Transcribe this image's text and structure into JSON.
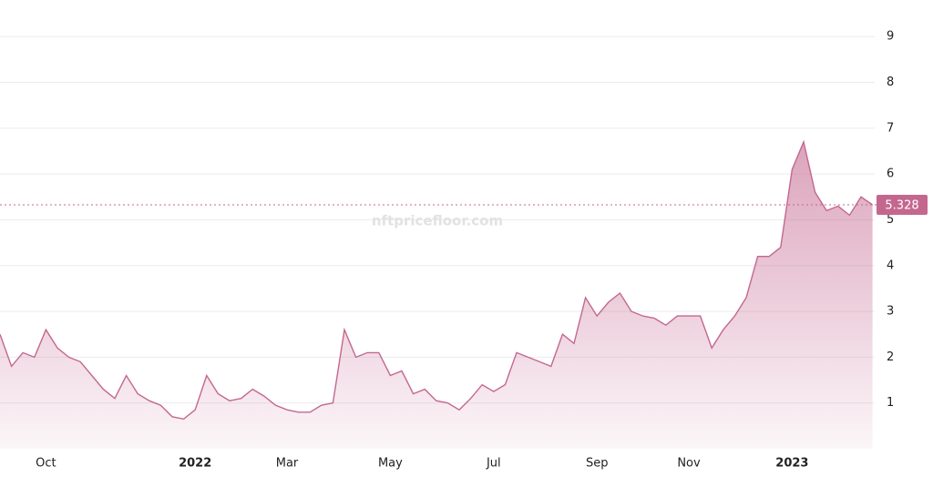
{
  "chart_data": {
    "type": "area",
    "watermark": "nftpricefloor.com",
    "categories": [
      null,
      null,
      null,
      null,
      "Oct",
      null,
      null,
      null,
      null,
      null,
      null,
      null,
      null,
      null,
      null,
      null,
      null,
      "2022",
      null,
      null,
      null,
      null,
      null,
      null,
      null,
      "Mar",
      null,
      null,
      null,
      null,
      null,
      null,
      null,
      null,
      "May",
      null,
      null,
      null,
      null,
      null,
      null,
      null,
      null,
      "Jul",
      null,
      null,
      null,
      null,
      null,
      null,
      null,
      null,
      "Sep",
      null,
      null,
      null,
      null,
      null,
      null,
      null,
      "Nov",
      null,
      null,
      null,
      null,
      null,
      null,
      null,
      null,
      "2023",
      null,
      null,
      null,
      null,
      null,
      null,
      null
    ],
    "values": [
      2.5,
      1.8,
      2.1,
      2.0,
      2.6,
      2.2,
      2.0,
      1.9,
      1.6,
      1.3,
      1.1,
      1.6,
      1.2,
      1.05,
      0.95,
      0.7,
      0.65,
      0.85,
      1.6,
      1.2,
      1.05,
      1.1,
      1.3,
      1.15,
      0.95,
      0.85,
      0.8,
      0.8,
      0.95,
      1.0,
      2.6,
      2.0,
      2.1,
      2.1,
      1.6,
      1.7,
      1.2,
      1.3,
      1.05,
      1.0,
      0.85,
      1.1,
      1.4,
      1.25,
      1.4,
      2.1,
      2.0,
      1.9,
      1.8,
      2.5,
      2.3,
      3.3,
      2.9,
      3.2,
      3.4,
      3.0,
      2.9,
      2.85,
      2.7,
      2.9,
      2.9,
      2.9,
      2.2,
      2.6,
      2.9,
      3.3,
      4.2,
      4.2,
      4.4,
      6.1,
      6.7,
      5.6,
      5.2,
      5.3,
      5.1,
      5.5,
      5.328
    ],
    "color": "#c4678f",
    "last_value": 5.328,
    "ylim": [
      0,
      9.8
    ],
    "yticks": [
      1,
      2,
      3,
      4,
      5,
      6,
      7,
      8,
      9
    ],
    "grid": true
  }
}
